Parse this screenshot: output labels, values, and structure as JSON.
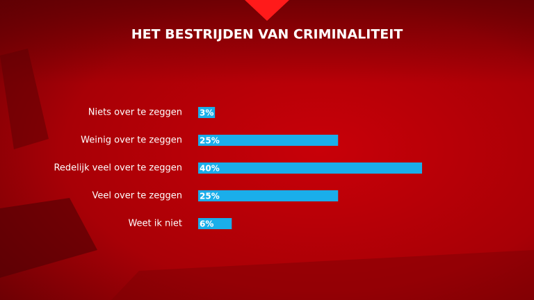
{
  "chart_data": {
    "type": "bar",
    "orientation": "horizontal",
    "title": "HET BESTRIJDEN VAN CRIMINALITEIT",
    "categories": [
      "Niets over te zeggen",
      "Weinig over te zeggen",
      "Redelijk veel over te zeggen",
      "Veel over te zeggen",
      "Weet ik niet"
    ],
    "values": [
      3,
      25,
      40,
      25,
      6
    ],
    "value_labels": [
      "3%",
      "25%",
      "40%",
      "25%",
      "6%"
    ],
    "color": "#1aaeea"
  }
}
